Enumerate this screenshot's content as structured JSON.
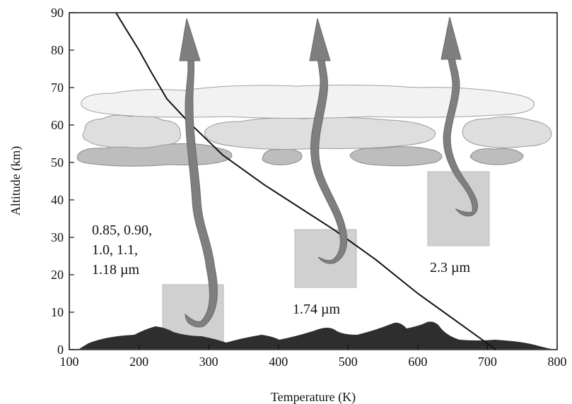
{
  "chart_data": {
    "type": "line",
    "xlabel": "Temperature (K)",
    "ylabel": "Altitude (km)",
    "xlim": [
      100,
      800
    ],
    "ylim": [
      0,
      90
    ],
    "x_ticks": [
      "100",
      "200",
      "300",
      "400",
      "500",
      "600",
      "700",
      "800"
    ],
    "y_ticks": [
      "0",
      "10",
      "20",
      "30",
      "40",
      "50",
      "60",
      "70",
      "80",
      "90"
    ],
    "series": [
      {
        "x": [
          167,
          180,
          200,
          218,
          240,
          270,
          320,
          380,
          430,
          480,
          540,
          600,
          660,
          712
        ],
        "y": [
          90,
          86,
          80,
          74,
          67,
          61,
          52,
          44,
          38,
          32,
          24,
          15,
          7,
          0
        ]
      }
    ],
    "annotations": [
      {
        "id": "near-ir-1",
        "lines": [
          "0.85, 0.90,",
          "1.0, 1.1,",
          "1.18 µm"
        ]
      },
      {
        "id": "near-ir-2",
        "lines": [
          "1.74 µm"
        ]
      },
      {
        "id": "near-ir-3",
        "lines": [
          "2.3 µm"
        ]
      }
    ],
    "colors": {
      "temperature_line": "#111111",
      "arrow": "#7f7f7f",
      "cloud_light": "#f2f2f2",
      "cloud_mid": "#dedede",
      "cloud_dark": "#bdbdbd",
      "surface": "#2e2e2e",
      "emission_box": "#d0d0d0"
    }
  }
}
